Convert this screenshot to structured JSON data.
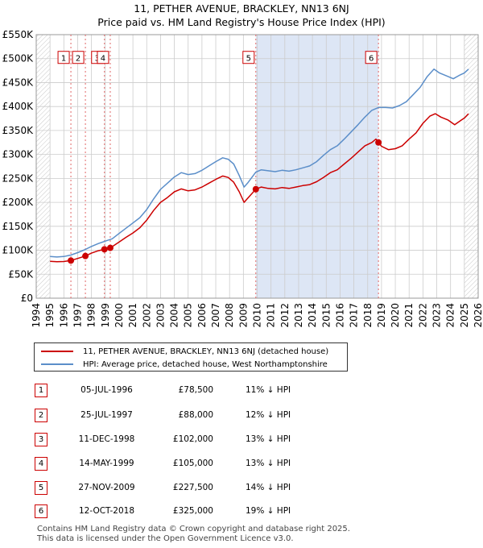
{
  "title": "11, PETHER AVENUE, BRACKLEY, NN13 6NJ",
  "subtitle": "Price paid vs. HM Land Registry's House Price Index (HPI)",
  "colors": {
    "property": "#cc0000",
    "hpi": "#5b8ec9",
    "shade": "#dde6f5",
    "grid": "#cccccc"
  },
  "chart_data": {
    "type": "line",
    "xlim": [
      1994,
      2026
    ],
    "ylim": [
      0,
      550000
    ],
    "x_ticks": [
      "1994",
      "1995",
      "1996",
      "1997",
      "1998",
      "1999",
      "2000",
      "2001",
      "2002",
      "2003",
      "2004",
      "2005",
      "2006",
      "2007",
      "2008",
      "2009",
      "2010",
      "2011",
      "2012",
      "2013",
      "2014",
      "2015",
      "2016",
      "2017",
      "2018",
      "2019",
      "2020",
      "2021",
      "2022",
      "2023",
      "2024",
      "2025",
      "2026"
    ],
    "y_ticks": [
      {
        "value": 0,
        "label": "£0"
      },
      {
        "value": 50000,
        "label": "£50K"
      },
      {
        "value": 100000,
        "label": "£100K"
      },
      {
        "value": 150000,
        "label": "£150K"
      },
      {
        "value": 200000,
        "label": "£200K"
      },
      {
        "value": 250000,
        "label": "£250K"
      },
      {
        "value": 300000,
        "label": "£300K"
      },
      {
        "value": 350000,
        "label": "£350K"
      },
      {
        "value": 400000,
        "label": "£400K"
      },
      {
        "value": 450000,
        "label": "£450K"
      },
      {
        "value": 500000,
        "label": "£500K"
      },
      {
        "value": 550000,
        "label": "£550K"
      }
    ],
    "shaded_ranges": [
      [
        2009.9,
        2018.78
      ]
    ],
    "hatched_ranges": [
      [
        1994,
        1995.0
      ],
      [
        2025.0,
        2026
      ]
    ],
    "series": [
      {
        "name": "11, PETHER AVENUE, BRACKLEY, NN13 6NJ (detached house)",
        "color": "#cc0000",
        "points": [
          [
            1995.0,
            77000
          ],
          [
            1995.5,
            76000
          ],
          [
            1996.0,
            76500
          ],
          [
            1996.5,
            78500
          ],
          [
            1997.0,
            83000
          ],
          [
            1997.56,
            88000
          ],
          [
            1998.0,
            94000
          ],
          [
            1998.5,
            99000
          ],
          [
            1998.94,
            102000
          ],
          [
            1999.36,
            105000
          ],
          [
            2000.0,
            117000
          ],
          [
            2000.5,
            127000
          ],
          [
            2001.0,
            136000
          ],
          [
            2001.5,
            147000
          ],
          [
            2002.0,
            163000
          ],
          [
            2002.5,
            183000
          ],
          [
            2003.0,
            200000
          ],
          [
            2003.5,
            210000
          ],
          [
            2004.0,
            222000
          ],
          [
            2004.5,
            228000
          ],
          [
            2005.0,
            224000
          ],
          [
            2005.5,
            226000
          ],
          [
            2006.0,
            232000
          ],
          [
            2006.5,
            240000
          ],
          [
            2007.0,
            248000
          ],
          [
            2007.5,
            255000
          ],
          [
            2007.9,
            252000
          ],
          [
            2008.3,
            242000
          ],
          [
            2008.7,
            222000
          ],
          [
            2009.05,
            200000
          ],
          [
            2009.3,
            208000
          ],
          [
            2009.9,
            227500
          ],
          [
            2010.3,
            232000
          ],
          [
            2010.8,
            229000
          ],
          [
            2011.3,
            228000
          ],
          [
            2011.8,
            231000
          ],
          [
            2012.3,
            229000
          ],
          [
            2012.8,
            232000
          ],
          [
            2013.3,
            235000
          ],
          [
            2013.8,
            237000
          ],
          [
            2014.3,
            243000
          ],
          [
            2014.8,
            252000
          ],
          [
            2015.3,
            262000
          ],
          [
            2015.8,
            268000
          ],
          [
            2016.3,
            280000
          ],
          [
            2016.8,
            292000
          ],
          [
            2017.3,
            305000
          ],
          [
            2017.8,
            318000
          ],
          [
            2018.3,
            325000
          ],
          [
            2018.6,
            332000
          ],
          [
            2018.78,
            325000
          ],
          [
            2019.0,
            317000
          ],
          [
            2019.5,
            310000
          ],
          [
            2020.0,
            312000
          ],
          [
            2020.5,
            318000
          ],
          [
            2021.0,
            332000
          ],
          [
            2021.5,
            345000
          ],
          [
            2022.0,
            365000
          ],
          [
            2022.5,
            380000
          ],
          [
            2022.9,
            385000
          ],
          [
            2023.3,
            378000
          ],
          [
            2023.8,
            372000
          ],
          [
            2024.3,
            362000
          ],
          [
            2024.8,
            372000
          ],
          [
            2025.0,
            376000
          ],
          [
            2025.3,
            385000
          ]
        ]
      },
      {
        "name": "HPI: Average price, detached house, West Northamptonshire",
        "color": "#5b8ec9",
        "points": [
          [
            1995.0,
            87000
          ],
          [
            1995.5,
            86000
          ],
          [
            1996.0,
            87000
          ],
          [
            1996.5,
            90000
          ],
          [
            1997.0,
            95000
          ],
          [
            1997.5,
            101000
          ],
          [
            1998.0,
            108000
          ],
          [
            1998.5,
            114000
          ],
          [
            1999.0,
            119000
          ],
          [
            1999.5,
            124000
          ],
          [
            2000.0,
            135000
          ],
          [
            2000.5,
            146000
          ],
          [
            2001.0,
            157000
          ],
          [
            2001.5,
            168000
          ],
          [
            2002.0,
            185000
          ],
          [
            2002.5,
            207000
          ],
          [
            2003.0,
            227000
          ],
          [
            2003.5,
            240000
          ],
          [
            2004.0,
            253000
          ],
          [
            2004.5,
            262000
          ],
          [
            2005.0,
            258000
          ],
          [
            2005.5,
            260000
          ],
          [
            2006.0,
            267000
          ],
          [
            2006.5,
            276000
          ],
          [
            2007.0,
            285000
          ],
          [
            2007.5,
            293000
          ],
          [
            2007.9,
            290000
          ],
          [
            2008.3,
            280000
          ],
          [
            2008.7,
            256000
          ],
          [
            2009.05,
            232000
          ],
          [
            2009.3,
            240000
          ],
          [
            2009.9,
            263000
          ],
          [
            2010.3,
            268000
          ],
          [
            2010.8,
            266000
          ],
          [
            2011.3,
            264000
          ],
          [
            2011.8,
            267000
          ],
          [
            2012.3,
            265000
          ],
          [
            2012.8,
            268000
          ],
          [
            2013.3,
            272000
          ],
          [
            2013.8,
            276000
          ],
          [
            2014.3,
            285000
          ],
          [
            2014.8,
            298000
          ],
          [
            2015.3,
            310000
          ],
          [
            2015.8,
            318000
          ],
          [
            2016.3,
            332000
          ],
          [
            2016.8,
            347000
          ],
          [
            2017.3,
            362000
          ],
          [
            2017.8,
            378000
          ],
          [
            2018.3,
            392000
          ],
          [
            2018.78,
            398000
          ],
          [
            2019.3,
            398000
          ],
          [
            2019.8,
            397000
          ],
          [
            2020.3,
            402000
          ],
          [
            2020.8,
            410000
          ],
          [
            2021.3,
            425000
          ],
          [
            2021.8,
            440000
          ],
          [
            2022.3,
            462000
          ],
          [
            2022.8,
            478000
          ],
          [
            2023.2,
            470000
          ],
          [
            2023.7,
            464000
          ],
          [
            2024.2,
            458000
          ],
          [
            2024.7,
            466000
          ],
          [
            2025.0,
            470000
          ],
          [
            2025.3,
            478000
          ]
        ]
      }
    ],
    "markers": [
      {
        "label": "1",
        "x": 1996.51,
        "y": 78500,
        "label_y": 500000
      },
      {
        "label": "2",
        "x": 1997.56,
        "y": 88000,
        "label_y": 500000
      },
      {
        "label": "3",
        "x": 1998.94,
        "y": 102000,
        "label_y": 500000
      },
      {
        "label": "4",
        "x": 1999.36,
        "y": 105000,
        "label_y": 500000
      },
      {
        "label": "5",
        "x": 2009.9,
        "y": 227500,
        "label_y": 500000
      },
      {
        "label": "6",
        "x": 2018.78,
        "y": 325000,
        "label_y": 500000
      }
    ]
  },
  "legend": {
    "property_label": "11, PETHER AVENUE, BRACKLEY, NN13 6NJ (detached house)",
    "hpi_label": "HPI: Average price, detached house, West Northamptonshire"
  },
  "sales": [
    {
      "num": "1",
      "date": "05-JUL-1996",
      "price": "£78,500",
      "hpi": "11% ↓ HPI"
    },
    {
      "num": "2",
      "date": "25-JUL-1997",
      "price": "£88,000",
      "hpi": "12% ↓ HPI"
    },
    {
      "num": "3",
      "date": "11-DEC-1998",
      "price": "£102,000",
      "hpi": "13% ↓ HPI"
    },
    {
      "num": "4",
      "date": "14-MAY-1999",
      "price": "£105,000",
      "hpi": "13% ↓ HPI"
    },
    {
      "num": "5",
      "date": "27-NOV-2009",
      "price": "£227,500",
      "hpi": "14% ↓ HPI"
    },
    {
      "num": "6",
      "date": "12-OCT-2018",
      "price": "£325,000",
      "hpi": "19% ↓ HPI"
    }
  ],
  "footer": {
    "line1": "Contains HM Land Registry data © Crown copyright and database right 2025.",
    "line2": "This data is licensed under the Open Government Licence v3.0."
  }
}
